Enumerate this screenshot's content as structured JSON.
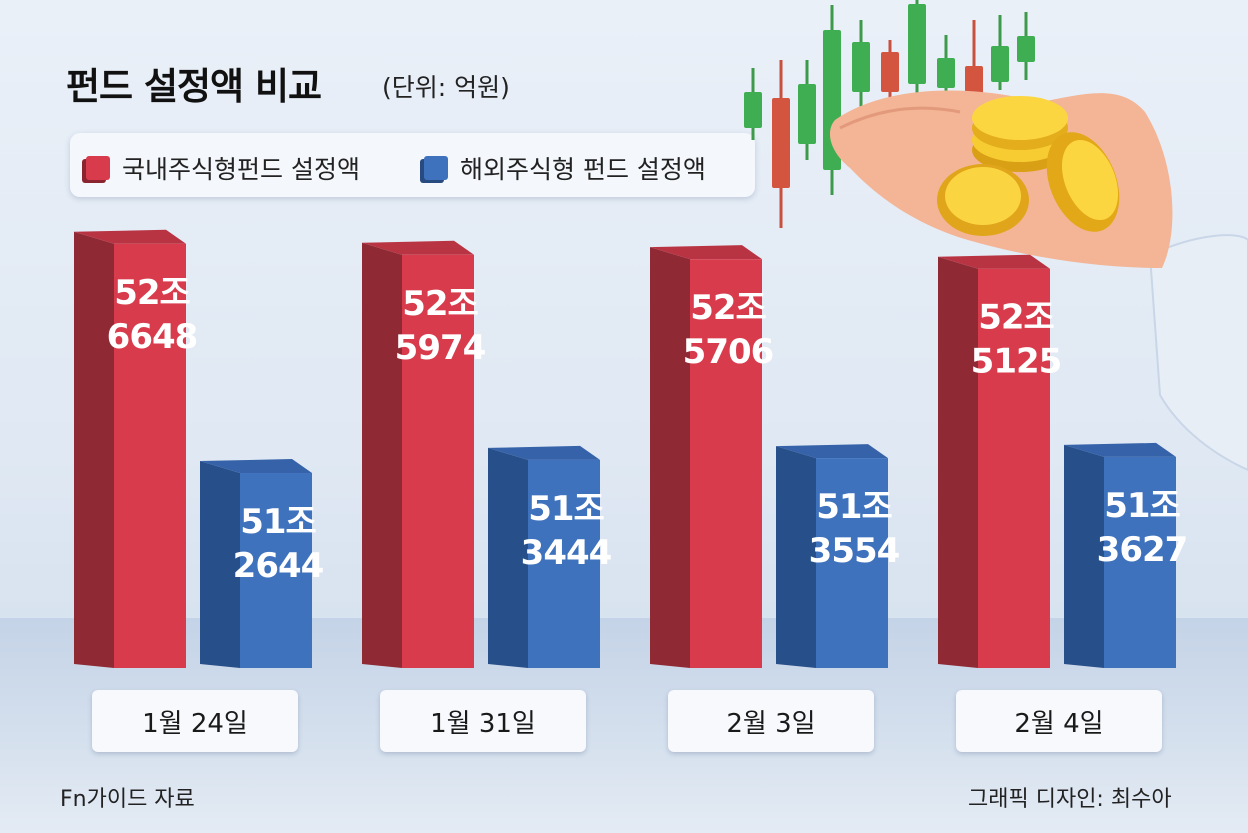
{
  "title": "펀드 설정액 비교",
  "unit": "(단위: 억원)",
  "legend": [
    {
      "label": "국내주식형펀드 설정액",
      "color": "#d83c4c"
    },
    {
      "label": "해외주식형 펀드 설정액",
      "color": "#3f72bd"
    }
  ],
  "chart_data": {
    "type": "bar",
    "categories": [
      "1월 24일",
      "1월 31일",
      "2월 3일",
      "2월 4일"
    ],
    "series": [
      {
        "name": "국내주식형펀드 설정액",
        "values": [
          526648,
          525974,
          525706,
          525125
        ],
        "labels": [
          [
            "52조",
            "6648"
          ],
          [
            "52조",
            "5974"
          ],
          [
            "52조",
            "5706"
          ],
          [
            "52조",
            "5125"
          ]
        ]
      },
      {
        "name": "해외주식형 펀드 설정액",
        "values": [
          512644,
          513444,
          513554,
          513627
        ],
        "labels": [
          [
            "51조",
            "2644"
          ],
          [
            "51조",
            "3444"
          ],
          [
            "51조",
            "3554"
          ],
          [
            "51조",
            "3627"
          ]
        ]
      }
    ]
  },
  "footer": {
    "source": "Fn가이드 자료",
    "credit": "그래픽 디자인: 최수아"
  }
}
